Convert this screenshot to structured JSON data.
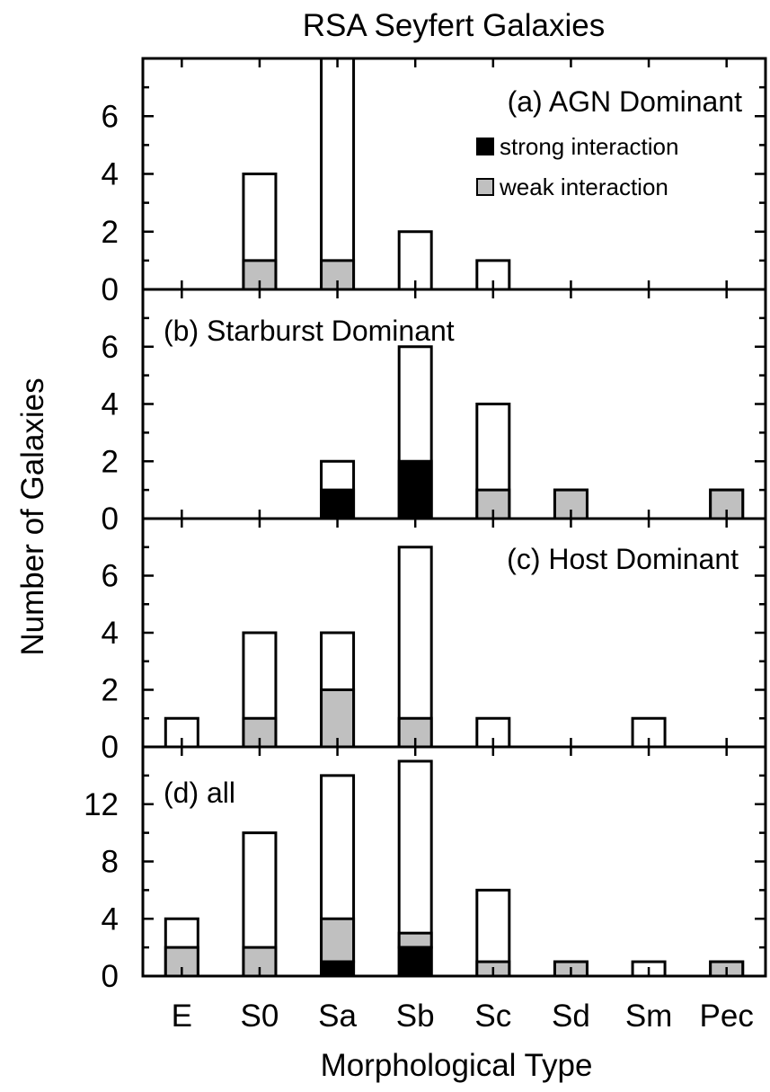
{
  "title": "RSA Seyfert Galaxies",
  "xlabel": "Morphological Type",
  "ylabel": "Number of Galaxies",
  "legend": {
    "strong": "strong interaction",
    "weak": "weak interaction"
  },
  "colors": {
    "strong": "#000000",
    "weak": "#c0c0c0",
    "total": "#ffffff",
    "edge": "#000000"
  },
  "chart_data": {
    "type": "bar",
    "stacked": true,
    "categories": [
      "E",
      "S0",
      "Sa",
      "Sb",
      "Sc",
      "Sd",
      "Sm",
      "Pec"
    ],
    "panels": [
      {
        "label": "(a) AGN Dominant",
        "ylim": [
          0,
          8
        ],
        "yticks": [
          0,
          2,
          4,
          6
        ],
        "series": [
          {
            "name": "strong interaction",
            "values": [
              0,
              0,
              0,
              0,
              0,
              0,
              0,
              0
            ]
          },
          {
            "name": "weak interaction",
            "values": [
              0,
              1,
              1,
              0,
              0,
              0,
              0,
              0
            ]
          },
          {
            "name": "total",
            "values": [
              0,
              4,
              8,
              2,
              1,
              0,
              0,
              0
            ]
          }
        ]
      },
      {
        "label": "(b) Starburst Dominant",
        "ylim": [
          0,
          8
        ],
        "yticks": [
          0,
          2,
          4,
          6
        ],
        "series": [
          {
            "name": "strong interaction",
            "values": [
              0,
              0,
              1,
              2,
              0,
              0,
              0,
              0
            ]
          },
          {
            "name": "weak interaction",
            "values": [
              0,
              0,
              0,
              0,
              1,
              1,
              0,
              1
            ]
          },
          {
            "name": "total",
            "values": [
              0,
              0,
              2,
              6,
              4,
              1,
              0,
              1
            ]
          }
        ]
      },
      {
        "label": "(c) Host Dominant",
        "ylim": [
          0,
          8
        ],
        "yticks": [
          0,
          2,
          4,
          6
        ],
        "series": [
          {
            "name": "strong interaction",
            "values": [
              0,
              0,
              0,
              0,
              0,
              0,
              0,
              0
            ]
          },
          {
            "name": "weak interaction",
            "values": [
              0,
              1,
              2,
              1,
              0,
              0,
              0,
              0
            ]
          },
          {
            "name": "total",
            "values": [
              1,
              4,
              4,
              7,
              1,
              0,
              1,
              0
            ]
          }
        ]
      },
      {
        "label": "(d) all",
        "ylim": [
          0,
          16
        ],
        "yticks": [
          0,
          4,
          8,
          12
        ],
        "series": [
          {
            "name": "strong interaction",
            "values": [
              0,
              0,
              1,
              2,
              0,
              0,
              0,
              0
            ]
          },
          {
            "name": "weak interaction",
            "values": [
              2,
              2,
              3,
              1,
              1,
              1,
              0,
              1
            ]
          },
          {
            "name": "total",
            "values": [
              4,
              10,
              14,
              15,
              6,
              1,
              1,
              1
            ]
          }
        ]
      }
    ],
    "grid": false,
    "legend_position": "top-right"
  }
}
